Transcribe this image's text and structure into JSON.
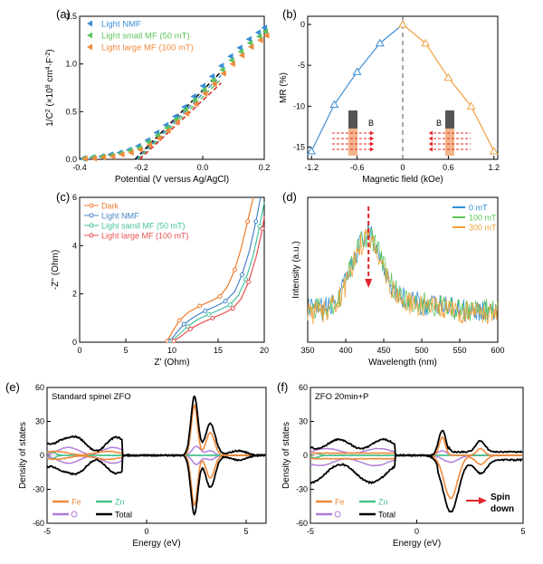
{
  "chart_data": [
    {
      "panel": "(a)",
      "type": "scatter",
      "xlabel": "Potential (V versus Ag/AgCl)",
      "ylabel_parts": [
        "1/C",
        "2",
        " (×10",
        "9",
        " cm",
        "4",
        "·F",
        "-2",
        ")"
      ],
      "xlim": [
        -0.4,
        0.2
      ],
      "ylim": [
        0.0,
        1.5
      ],
      "xticks": [
        "-0.4",
        "-0.2",
        "0.0",
        "0.2"
      ],
      "xtick_values": [
        -0.4,
        -0.2,
        0.0,
        0.2
      ],
      "yticks": [
        "0.0",
        "0.5",
        "1.0",
        "1.5"
      ],
      "ytick_values": [
        0.0,
        0.5,
        1.0,
        1.5
      ],
      "legend_position": "top-left",
      "series": [
        {
          "name": "Light NMF",
          "color": "#3b8fd6",
          "x": [
            -0.39,
            -0.36,
            -0.33,
            -0.3,
            -0.27,
            -0.24,
            -0.21,
            -0.18,
            -0.15,
            -0.12,
            -0.09,
            -0.06,
            -0.03,
            0.0,
            0.03,
            0.06,
            0.09,
            0.12,
            0.15,
            0.18,
            0.2
          ],
          "y": [
            0.01,
            0.02,
            0.03,
            0.05,
            0.07,
            0.1,
            0.14,
            0.2,
            0.28,
            0.36,
            0.45,
            0.55,
            0.66,
            0.77,
            0.87,
            0.98,
            1.08,
            1.17,
            1.26,
            1.33,
            1.38
          ]
        },
        {
          "name": "Light small MF (50 mT)",
          "color": "#5ec35e",
          "x": [
            -0.39,
            -0.36,
            -0.33,
            -0.3,
            -0.27,
            -0.24,
            -0.21,
            -0.18,
            -0.15,
            -0.12,
            -0.09,
            -0.06,
            -0.03,
            0.0,
            0.03,
            0.06,
            0.09,
            0.12,
            0.15,
            0.18,
            0.2
          ],
          "y": [
            0.01,
            0.02,
            0.03,
            0.04,
            0.06,
            0.09,
            0.12,
            0.18,
            0.25,
            0.33,
            0.42,
            0.52,
            0.62,
            0.73,
            0.83,
            0.94,
            1.04,
            1.13,
            1.22,
            1.29,
            1.34
          ]
        },
        {
          "name": "Light large MF (100 mT)",
          "color": "#f08a3c",
          "x": [
            -0.39,
            -0.36,
            -0.33,
            -0.3,
            -0.27,
            -0.24,
            -0.21,
            -0.18,
            -0.15,
            -0.12,
            -0.09,
            -0.06,
            -0.03,
            0.0,
            0.03,
            0.06,
            0.09,
            0.12,
            0.15,
            0.18,
            0.2
          ],
          "y": [
            0.01,
            0.01,
            0.02,
            0.03,
            0.05,
            0.07,
            0.1,
            0.15,
            0.22,
            0.3,
            0.39,
            0.48,
            0.58,
            0.69,
            0.79,
            0.9,
            1.0,
            1.09,
            1.18,
            1.25,
            1.3
          ]
        }
      ],
      "fit_lines": [
        {
          "color": "#000000",
          "x": [
            -0.22,
            0.06
          ],
          "y": [
            0.0,
            0.92
          ]
        },
        {
          "color": "#3b8fd6",
          "x": [
            -0.215,
            0.06
          ],
          "y": [
            0.0,
            0.88
          ]
        },
        {
          "color": "#5ec35e",
          "x": [
            -0.21,
            0.06
          ],
          "y": [
            0.0,
            0.84
          ]
        },
        {
          "color": "#e0242a",
          "x": [
            -0.205,
            0.06
          ],
          "y": [
            0.0,
            0.8
          ]
        }
      ]
    },
    {
      "panel": "(b)",
      "type": "line",
      "xlabel": "Magnetic field (kOe)",
      "ylabel": "MR (%)",
      "xlim": [
        -1.25,
        1.25
      ],
      "ylim": [
        -16.5,
        1.0
      ],
      "xticks": [
        "-1.2",
        "-0.6",
        "0",
        "0.6",
        "1.2"
      ],
      "xtick_values": [
        -1.2,
        -0.6,
        0,
        0.6,
        1.2
      ],
      "yticks": [
        "0",
        "-5",
        "-10",
        "-15"
      ],
      "ytick_values": [
        0,
        -5,
        -10,
        -15
      ],
      "dashed_vline_x": 0,
      "series": [
        {
          "color": "#3b8fd6",
          "x": [
            -1.2,
            -0.9,
            -0.6,
            -0.3,
            0
          ],
          "y": [
            -15.5,
            -9.8,
            -5.8,
            -2.3,
            0
          ]
        },
        {
          "color": "#f0a040",
          "x": [
            0,
            0.3,
            0.6,
            0.9,
            1.2
          ],
          "y": [
            0,
            -2.3,
            -6.5,
            -10.0,
            -15.5
          ]
        }
      ],
      "inset_label": "B"
    },
    {
      "panel": "(c)",
      "type": "line",
      "xlabel": "Z' (Ohm)",
      "ylabel": "-Z'' (Ohm)",
      "xlim": [
        0,
        20
      ],
      "ylim": [
        0,
        6
      ],
      "xticks": [
        "0",
        "5",
        "10",
        "15",
        "20"
      ],
      "xtick_values": [
        0,
        5,
        10,
        15,
        20
      ],
      "yticks": [
        "0",
        "2",
        "4",
        "6"
      ],
      "ytick_values": [
        0,
        2,
        4,
        6
      ],
      "legend_position": "top-left",
      "series": [
        {
          "name": "Dark",
          "color": "#f07a2a",
          "x": [
            9.5,
            10.0,
            10.8,
            11.8,
            13.0,
            14.2,
            15.2,
            16.0,
            16.8,
            17.5,
            18.2,
            18.8
          ],
          "y": [
            0.05,
            0.4,
            0.9,
            1.25,
            1.5,
            1.7,
            1.9,
            2.3,
            3.0,
            3.9,
            5.0,
            6.0
          ]
        },
        {
          "name": "Light NMF",
          "color": "#4a84c8",
          "x": [
            9.8,
            10.4,
            11.3,
            12.4,
            13.6,
            14.8,
            15.8,
            16.8,
            17.6,
            18.4,
            19.1,
            19.6
          ],
          "y": [
            0.05,
            0.35,
            0.75,
            1.05,
            1.3,
            1.5,
            1.7,
            2.1,
            2.8,
            3.8,
            5.0,
            6.0
          ]
        },
        {
          "name": "Light samll MF (50 mT)",
          "color": "#45c2a0",
          "x": [
            10.0,
            10.7,
            11.7,
            12.8,
            14.0,
            15.2,
            16.3,
            17.2,
            18.0,
            18.8,
            19.5,
            20.0
          ],
          "y": [
            0.05,
            0.3,
            0.65,
            0.95,
            1.15,
            1.35,
            1.55,
            1.95,
            2.6,
            3.6,
            4.8,
            5.8
          ]
        },
        {
          "name": "Light large MF (100 mT)",
          "color": "#e85050",
          "x": [
            10.2,
            11.0,
            12.0,
            13.2,
            14.4,
            15.6,
            16.6,
            17.5,
            18.3,
            19.1,
            19.8,
            20.0
          ],
          "y": [
            0.05,
            0.25,
            0.55,
            0.8,
            1.0,
            1.2,
            1.4,
            1.8,
            2.5,
            3.5,
            4.7,
            5.2
          ]
        }
      ]
    },
    {
      "panel": "(d)",
      "type": "line",
      "xlabel": "Wavelength (nm)",
      "ylabel": "Intensity (a.u.)",
      "xlim": [
        350,
        600
      ],
      "xticks": [
        "350",
        "400",
        "450",
        "500",
        "550",
        "600"
      ],
      "xtick_values": [
        350,
        400,
        450,
        500,
        550,
        600
      ],
      "legend_position": "top-right",
      "arrow_x": 430,
      "series": [
        {
          "name": "0 mT",
          "color": "#2f8fd6"
        },
        {
          "name": "100 mT",
          "color": "#5cc85c"
        },
        {
          "name": "300 mT",
          "color": "#f3a03a"
        }
      ]
    },
    {
      "panel": "(e)",
      "type": "line",
      "title": "Standard spinel ZFO",
      "xlabel": "Energy (eV)",
      "ylabel": "Density of states",
      "xlim": [
        -5,
        6
      ],
      "ylim": [
        -60,
        60
      ],
      "xticks": [
        "-5",
        "0",
        "5"
      ],
      "xtick_values": [
        -5,
        0,
        5
      ],
      "yticks": [
        "60",
        "30",
        "0",
        "-30",
        "-60"
      ],
      "ytick_values": [
        60,
        30,
        0,
        -30,
        -60
      ],
      "legend": [
        "Fe",
        "Zn",
        "O",
        "Total"
      ],
      "legend_colors": [
        "#f08a3c",
        "#45c28a",
        "#b07ad8",
        "#000000"
      ],
      "legend_position": "bottom-left"
    },
    {
      "panel": "(f)",
      "type": "line",
      "title": "ZFO 20min+P",
      "xlabel": "Energy (eV)",
      "ylabel": "Density of states",
      "xlim": [
        -5,
        5
      ],
      "ylim": [
        -60,
        60
      ],
      "xticks": [
        "-5",
        "0",
        "5"
      ],
      "xtick_values": [
        -5,
        0,
        5
      ],
      "yticks": [
        "60",
        "30",
        "0",
        "-30",
        "-60"
      ],
      "ytick_values": [
        60,
        30,
        0,
        -30,
        -60
      ],
      "legend": [
        "Fe",
        "Zn",
        "O",
        "Total"
      ],
      "legend_colors": [
        "#f08a3c",
        "#45c28a",
        "#b07ad8",
        "#000000"
      ],
      "legend_position": "bottom-left",
      "annotation": [
        "Spin",
        "down"
      ]
    }
  ]
}
